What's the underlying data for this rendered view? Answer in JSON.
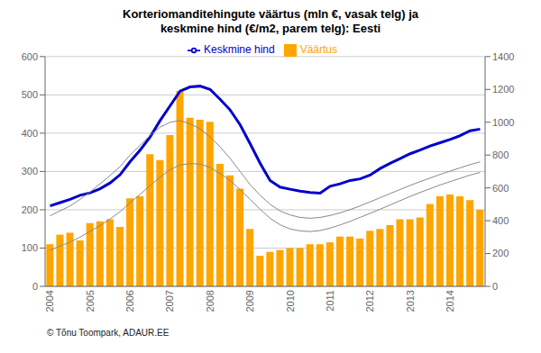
{
  "chart_data": {
    "type": "bar",
    "title": "Korteriomanditehingute väärtus (mln €, vasak telg) ja\nkeskmine hind (€/m2, parem telg): Eesti",
    "categories": [
      "2004",
      null,
      null,
      null,
      "2005",
      null,
      null,
      null,
      "2006",
      null,
      null,
      null,
      "2007",
      null,
      null,
      null,
      "2008",
      null,
      null,
      null,
      "2009",
      null,
      null,
      null,
      "2010",
      null,
      null,
      null,
      "2011",
      null,
      null,
      null,
      "2012",
      null,
      null,
      null,
      "2013",
      null,
      null,
      null,
      "2014",
      null,
      null,
      null
    ],
    "series": [
      {
        "name": "Väärtus",
        "type": "bar",
        "color": "#FFA500",
        "values": [
          110,
          135,
          140,
          120,
          165,
          170,
          175,
          155,
          230,
          235,
          345,
          330,
          395,
          510,
          440,
          435,
          430,
          320,
          290,
          255,
          150,
          80,
          90,
          95,
          100,
          100,
          110,
          110,
          115,
          130,
          130,
          125,
          145,
          150,
          160,
          175,
          175,
          180,
          215,
          235,
          240,
          235,
          225,
          200
        ]
      },
      {
        "name": "Keskmine hind",
        "type": "line",
        "axis": "y2",
        "color": "#0000CC",
        "values": [
          490,
          510,
          530,
          555,
          570,
          595,
          630,
          680,
          760,
          830,
          910,
          1010,
          1100,
          1190,
          1215,
          1220,
          1200,
          1140,
          1075,
          985,
          870,
          750,
          645,
          605,
          592,
          580,
          572,
          568,
          610,
          625,
          645,
          655,
          678,
          718,
          750,
          778,
          808,
          830,
          855,
          875,
          895,
          918,
          948,
          958
        ]
      },
      {
        "type": "line",
        "axis": "y2",
        "color": "#888888",
        "values": [
          430,
          460,
          490,
          530,
          575,
          625,
          675,
          730,
          800,
          860,
          920,
          970,
          1000,
          1010,
          990,
          960,
          910,
          850,
          780,
          700,
          620,
          555,
          500,
          460,
          435,
          420,
          415,
          420,
          432,
          448,
          468,
          490,
          515,
          540,
          565,
          590,
          615,
          638,
          660,
          682,
          702,
          722,
          742,
          758
        ]
      },
      {
        "type": "line",
        "axis": "y2",
        "color": "#888888",
        "values": [
          220,
          245,
          270,
          300,
          335,
          370,
          410,
          455,
          510,
          560,
          615,
          665,
          710,
          740,
          748,
          745,
          725,
          688,
          645,
          590,
          530,
          470,
          415,
          375,
          350,
          338,
          334,
          340,
          355,
          374,
          396,
          420,
          445,
          470,
          496,
          522,
          548,
          572,
          595,
          618,
          638,
          658,
          678,
          694
        ]
      }
    ],
    "ylim": [
      0,
      600
    ],
    "yticks": [
      0,
      100,
      200,
      300,
      400,
      500,
      600
    ],
    "y2lim": [
      0,
      1400
    ],
    "y2ticks": [
      0,
      200,
      400,
      600,
      800,
      1000,
      1200,
      1400
    ],
    "grid": true,
    "legend": "top",
    "annotations": [
      "© Tõnu Toompark, ADAUR.EE"
    ]
  }
}
